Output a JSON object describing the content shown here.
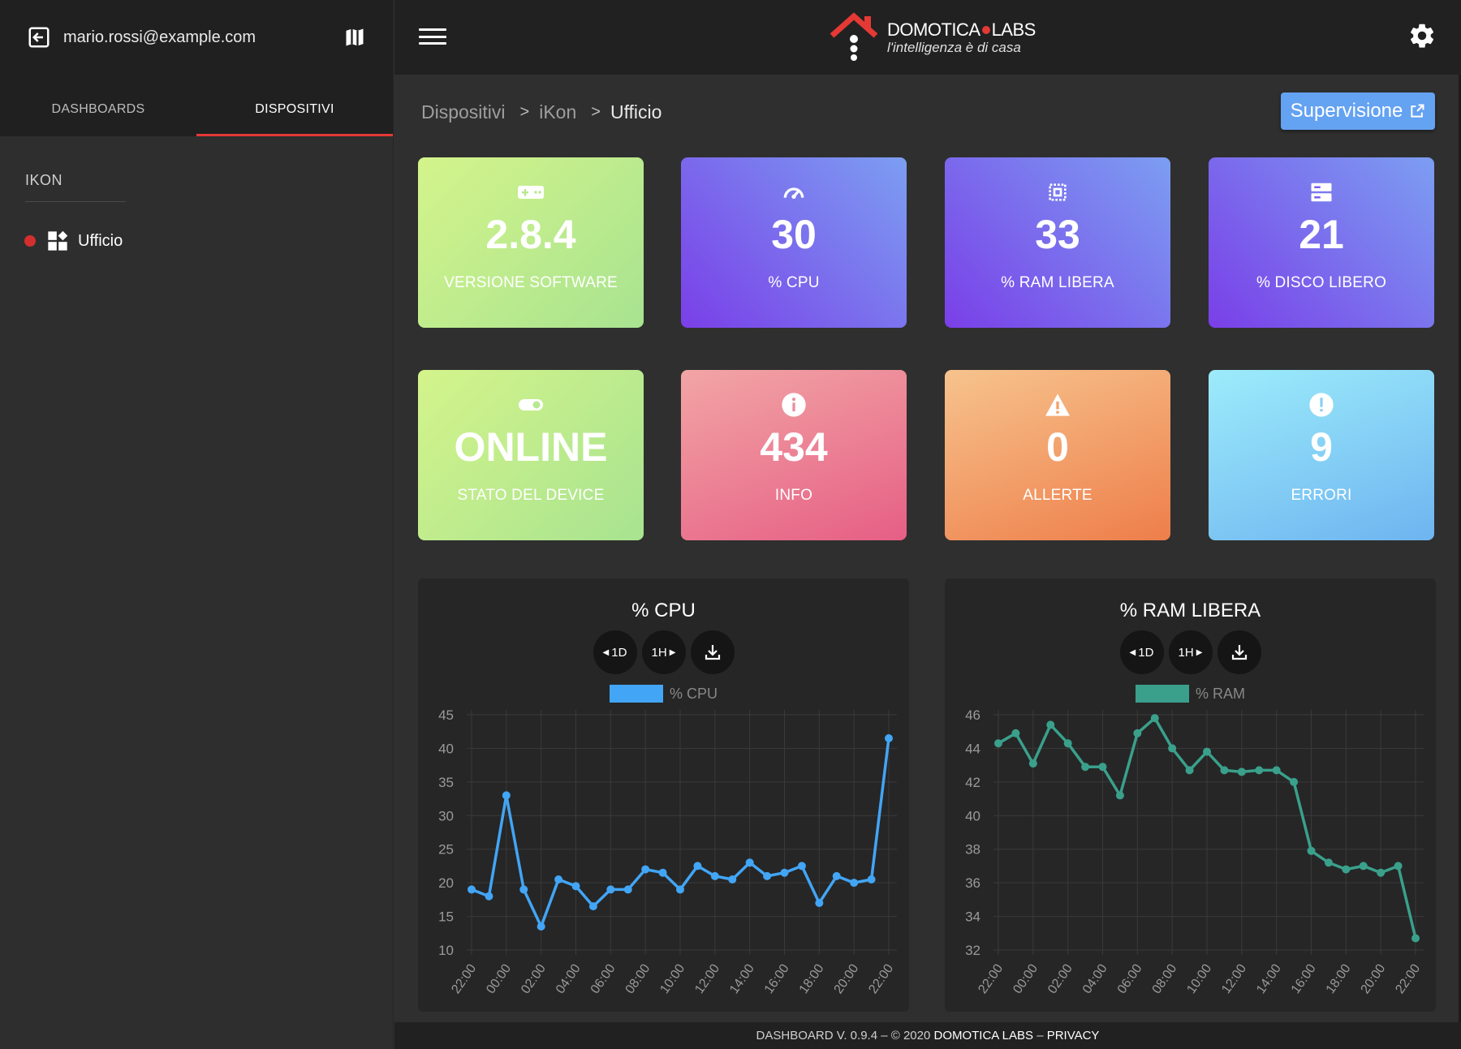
{
  "sidebar": {
    "user_email": "mario.rossi@example.com",
    "tabs": [
      {
        "label": "DASHBOARDS",
        "active": false
      },
      {
        "label": "DISPOSITIVI",
        "active": true
      }
    ],
    "group_title": "IKON",
    "devices": [
      {
        "label": "Ufficio",
        "status_color": "#d32f2f"
      }
    ]
  },
  "topbar": {
    "logo_name_part1": "DOMOTICA",
    "logo_name_part2": "LABS",
    "logo_tagline": "l'intelligenza è di casa"
  },
  "breadcrumb": {
    "items": [
      "Dispositivi",
      "iKon"
    ],
    "separator": ">",
    "current": "Ufficio"
  },
  "supervisione_label": "Supervisione",
  "tiles": [
    {
      "value": "2.8.4",
      "label": "VERSIONE SOFTWARE",
      "icon": "gamepad-icon",
      "gradient": "green"
    },
    {
      "value": "30",
      "label": "% CPU",
      "icon": "speedometer-icon",
      "gradient": "purple"
    },
    {
      "value": "33",
      "label": "% RAM LIBERA",
      "icon": "memory-chip-icon",
      "gradient": "purple"
    },
    {
      "value": "21",
      "label": "% DISCO LIBERO",
      "icon": "storage-icon",
      "gradient": "purple"
    },
    {
      "value": "ONLINE",
      "label": "STATO DEL DEVICE",
      "icon": "toggle-icon",
      "gradient": "green"
    },
    {
      "value": "434",
      "label": "INFO",
      "icon": "info-icon",
      "gradient": "pink"
    },
    {
      "value": "0",
      "label": "ALLERTE",
      "icon": "warning-icon",
      "gradient": "orange"
    },
    {
      "value": "9",
      "label": "ERRORI",
      "icon": "error-icon",
      "gradient": "blue"
    }
  ],
  "chart_controls": {
    "back_label": "1D",
    "fwd_label": "1H"
  },
  "chart_data": [
    {
      "type": "line",
      "title": "% CPU",
      "series": [
        {
          "name": "% CPU",
          "color": "#42a5f5"
        }
      ],
      "x_tick_labels": [
        "22:00",
        "00:00",
        "02:00",
        "04:00",
        "06:00",
        "08:00",
        "10:00",
        "12:00",
        "14:00",
        "16:00",
        "18:00",
        "20:00",
        "22:00"
      ],
      "y_ticks": [
        45,
        40,
        35,
        30,
        25,
        20,
        15,
        10
      ],
      "ylim": [
        10,
        45
      ],
      "values": [
        19,
        18,
        33,
        19,
        13.5,
        20.5,
        19.5,
        16.5,
        19,
        19,
        22,
        21.5,
        19,
        22.5,
        21,
        20.5,
        23,
        21,
        21.5,
        22.5,
        17,
        21,
        20,
        20.5,
        41.5
      ],
      "grid": true,
      "legend": "top"
    },
    {
      "type": "line",
      "title": "% RAM LIBERA",
      "series": [
        {
          "name": "% RAM",
          "color": "#3aa08b"
        }
      ],
      "x_tick_labels": [
        "22:00",
        "00:00",
        "02:00",
        "04:00",
        "06:00",
        "08:00",
        "10:00",
        "12:00",
        "14:00",
        "16:00",
        "18:00",
        "20:00",
        "22:00"
      ],
      "y_ticks": [
        46,
        44,
        42,
        40,
        38,
        36,
        34,
        32
      ],
      "ylim": [
        32,
        46
      ],
      "values": [
        44.3,
        44.9,
        43.1,
        45.4,
        44.3,
        42.9,
        42.9,
        41.2,
        44.9,
        45.8,
        44,
        42.7,
        43.8,
        42.7,
        42.6,
        42.7,
        42.7,
        42,
        37.9,
        37.2,
        36.8,
        37,
        36.6,
        37,
        32.7
      ],
      "grid": true,
      "legend": "top"
    }
  ],
  "footer": {
    "version_text": "DASHBOARD V. 0.9.4 – © 2020",
    "brand": "DOMOTICA LABS",
    "sep": "–",
    "privacy": "PRIVACY"
  }
}
